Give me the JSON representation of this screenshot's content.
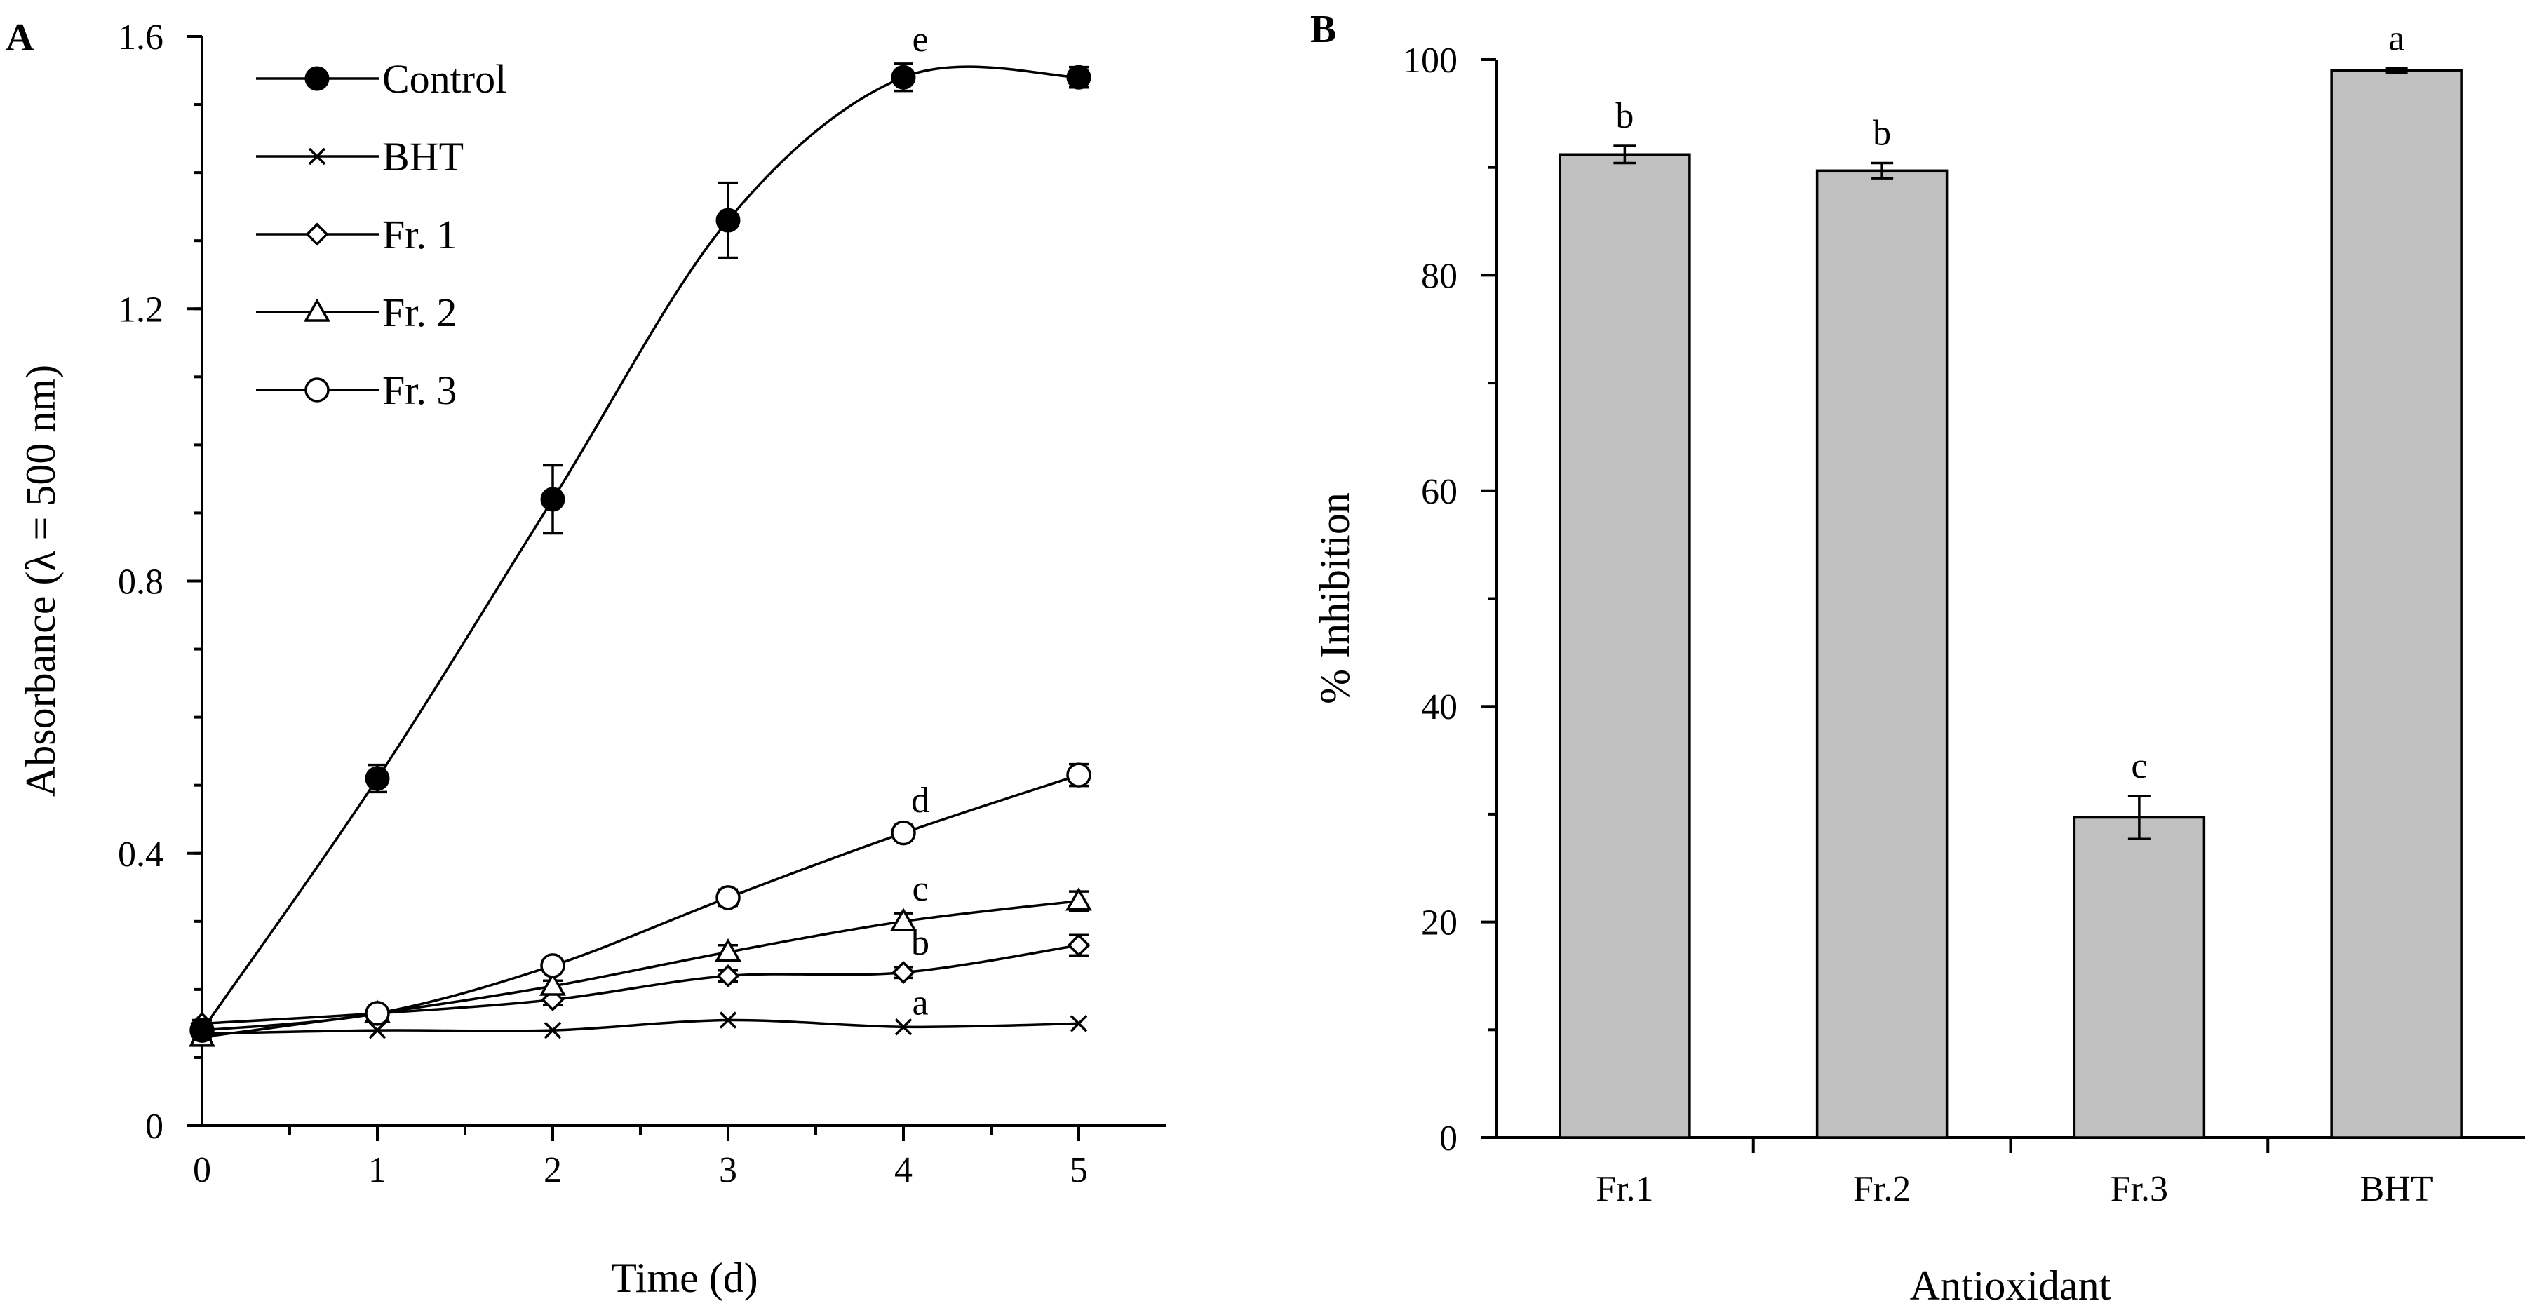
{
  "chart_data": [
    {
      "panel": "A",
      "type": "line",
      "title": "",
      "xlabel": "Time (d)",
      "ylabel": "Absorbance (λ = 500 nm)",
      "xlim": [
        0,
        5.5
      ],
      "ylim": [
        0,
        1.6
      ],
      "x_ticks": [
        "0",
        "1",
        "2",
        "3",
        "4",
        "5"
      ],
      "y_ticks": [
        "0",
        "0.4",
        "0.8",
        "1.2",
        "1.6"
      ],
      "y_tick_values": [
        0,
        0.4,
        0.8,
        1.2,
        1.6
      ],
      "legend_position": "top-left",
      "x": [
        0,
        1,
        2,
        3,
        4,
        5
      ],
      "series": [
        {
          "name": "Control",
          "marker": "filled-circle",
          "values": [
            0.14,
            0.51,
            0.92,
            1.33,
            1.54,
            1.54
          ],
          "errors": [
            0.01,
            0.02,
            0.05,
            0.055,
            0.02,
            0.015
          ],
          "label": "e",
          "label_x": 4
        },
        {
          "name": "BHT",
          "marker": "cross",
          "values": [
            0.135,
            0.14,
            0.14,
            0.155,
            0.145,
            0.15
          ],
          "errors": [
            0,
            0,
            0,
            0,
            0,
            0
          ],
          "label": "a",
          "label_x": 4
        },
        {
          "name": "Fr. 1",
          "marker": "diamond",
          "values": [
            0.15,
            0.165,
            0.185,
            0.22,
            0.225,
            0.265
          ],
          "errors": [
            0.005,
            0.005,
            0.008,
            0.008,
            0.008,
            0.015
          ],
          "label": "b",
          "label_x": 4
        },
        {
          "name": "Fr. 2",
          "marker": "triangle",
          "values": [
            0.13,
            0.165,
            0.205,
            0.255,
            0.3,
            0.33
          ],
          "errors": [
            0.005,
            0.005,
            0.008,
            0.01,
            0.012,
            0.014
          ],
          "label": "c",
          "label_x": 4
        },
        {
          "name": "Fr. 3",
          "marker": "open-circle",
          "values": [
            0.14,
            0.165,
            0.235,
            0.335,
            0.43,
            0.515
          ],
          "errors": [
            0.005,
            0.005,
            0.008,
            0.012,
            0.012,
            0.016
          ],
          "label": "d",
          "label_x": 4
        }
      ]
    },
    {
      "panel": "B",
      "type": "bar",
      "title": "",
      "xlabel": "Antioxidant",
      "ylabel": "% Inhibition",
      "ylim": [
        0,
        100
      ],
      "y_ticks": [
        "0",
        "20",
        "40",
        "60",
        "80",
        "100"
      ],
      "y_tick_values": [
        0,
        20,
        40,
        60,
        80,
        100
      ],
      "categories": [
        "Fr.1",
        "Fr.2",
        "Fr.3",
        "BHT"
      ],
      "values": [
        91.2,
        89.7,
        29.7,
        99.0
      ],
      "errors": [
        0.8,
        0.7,
        2.0,
        0.2
      ],
      "labels": [
        "b",
        "b",
        "c",
        "a"
      ],
      "bar_color": "#c0c0c0"
    }
  ]
}
